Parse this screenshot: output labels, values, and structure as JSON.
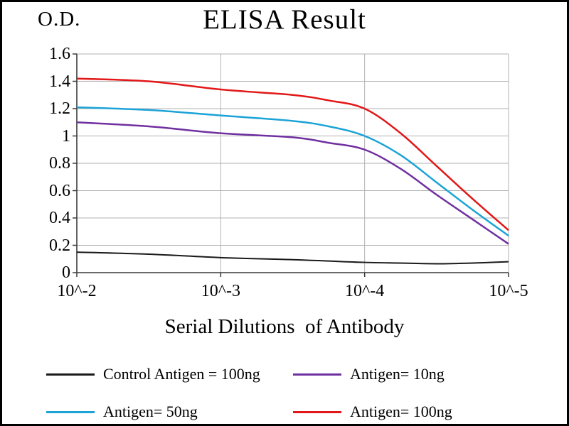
{
  "chart_data": {
    "type": "line",
    "title": "ELISA Result",
    "ylabel": "O.D.",
    "xlabel": "Serial Dilutions  of Antibody",
    "grid": true,
    "legend_position": "bottom",
    "ylim": [
      0,
      1.6
    ],
    "y_tick_labels": [
      "0",
      "0.2",
      "0.4",
      "0.6",
      "0.8",
      "1",
      "1.2",
      "1.4",
      "1.6"
    ],
    "x_tick_labels": [
      "10^-2",
      "10^-3",
      "10^-4",
      "10^-5"
    ],
    "colors": {
      "grid": "#b2b2b2",
      "axis": "#3a3a3a",
      "text": "#000000",
      "background": "#ffffff"
    },
    "x_sample_positions": [
      0,
      0.5,
      1,
      1.5,
      1.75,
      2,
      2.25,
      2.5,
      2.75,
      3
    ],
    "series": [
      {
        "name": "Control Antigen = 100ng",
        "color": "#1a1a1a",
        "values": [
          0.15,
          0.135,
          0.11,
          0.095,
          0.085,
          0.075,
          0.07,
          0.065,
          0.07,
          0.08
        ]
      },
      {
        "name": "Antigen= 10ng",
        "color": "#7030a0",
        "values": [
          1.1,
          1.07,
          1.02,
          0.99,
          0.95,
          0.9,
          0.76,
          0.57,
          0.39,
          0.21
        ]
      },
      {
        "name": "Antigen= 50ng",
        "color": "#1ba3d7",
        "values": [
          1.21,
          1.19,
          1.15,
          1.11,
          1.07,
          1.0,
          0.86,
          0.66,
          0.46,
          0.27
        ]
      },
      {
        "name": "Antigen= 100ng",
        "color": "#e21717",
        "values": [
          1.42,
          1.4,
          1.34,
          1.3,
          1.26,
          1.2,
          1.02,
          0.78,
          0.54,
          0.31
        ]
      }
    ]
  }
}
